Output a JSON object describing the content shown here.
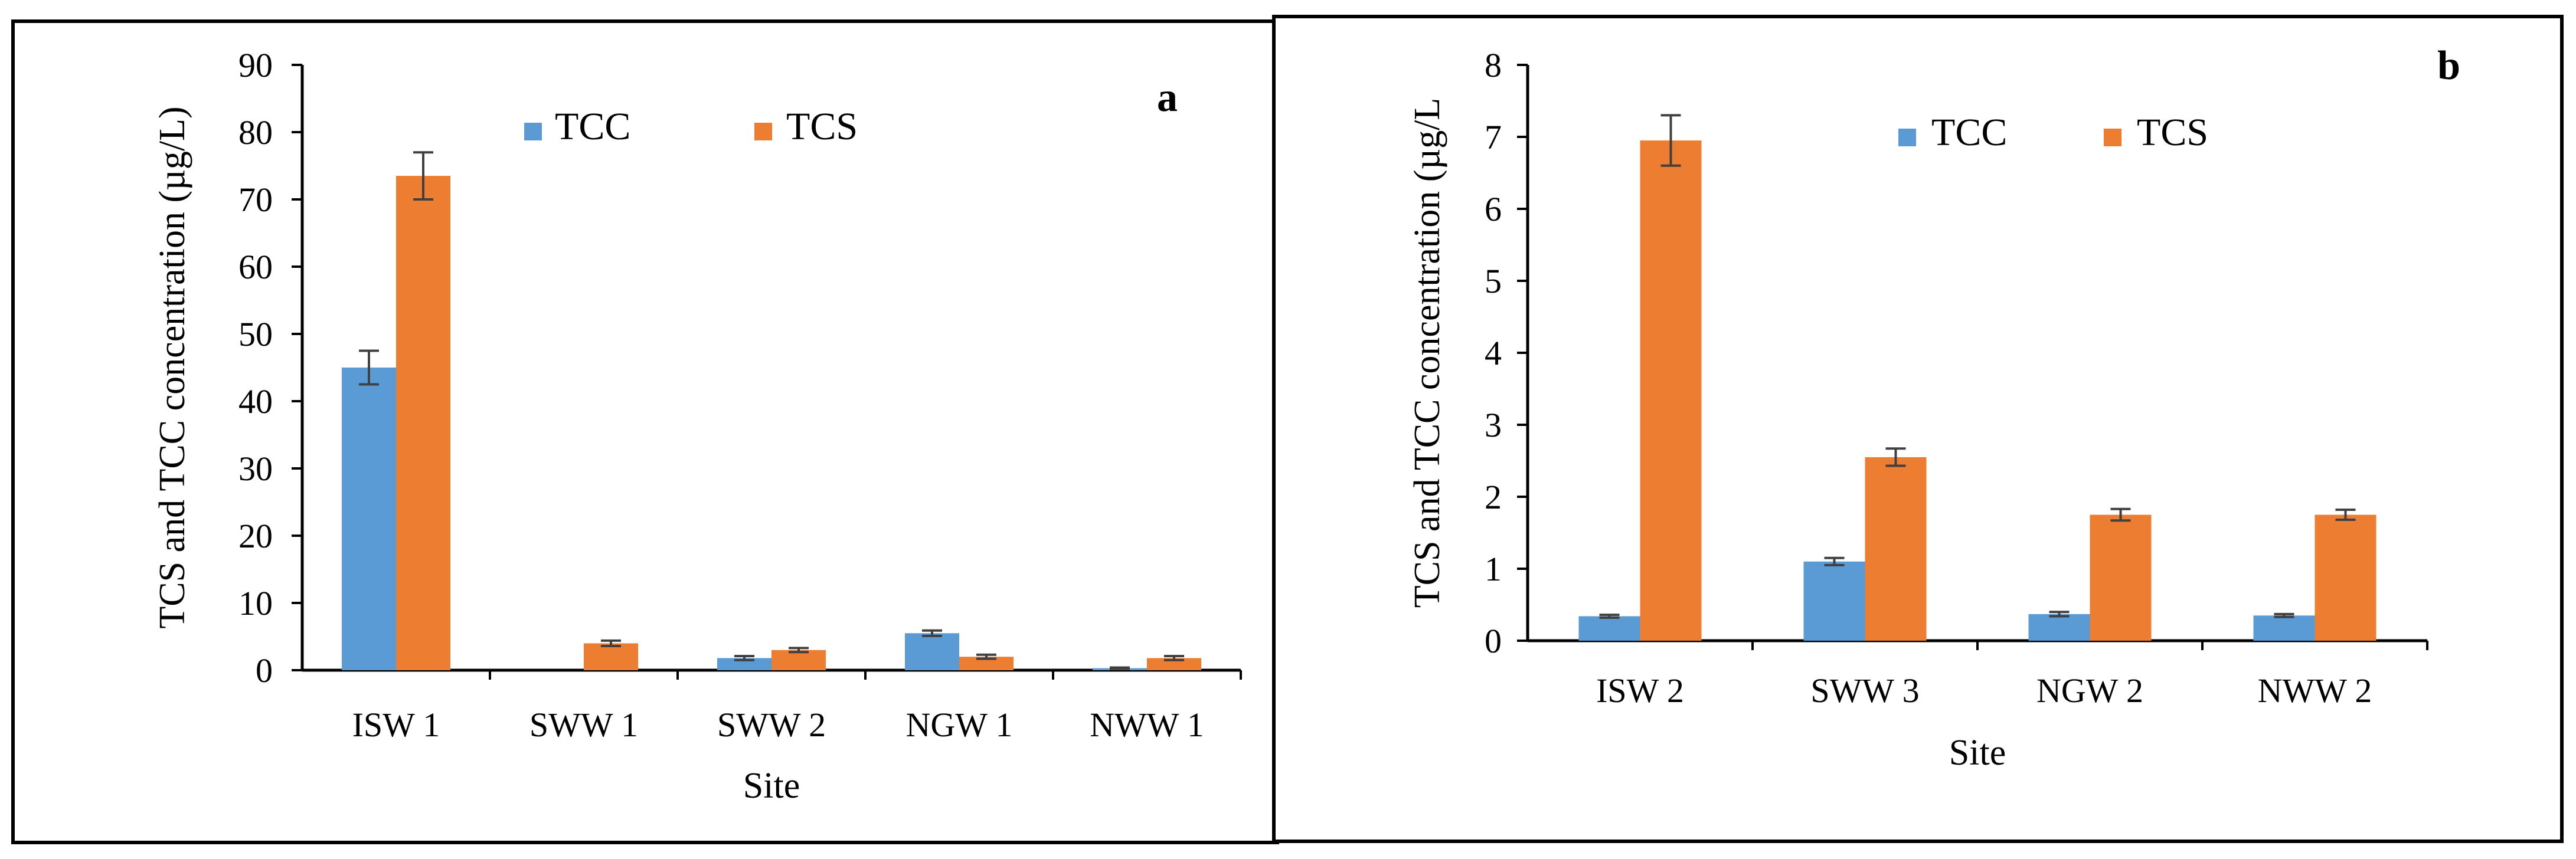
{
  "colors": {
    "tcc": "#5b9bd5",
    "tcs": "#ed7d31",
    "error_bar": "#404040",
    "axis": "#000000"
  },
  "chart_data": [
    {
      "type": "bar",
      "panel_label": "a",
      "categories": [
        "ISW 1",
        "SWW 1",
        "SWW 2",
        "NGW 1",
        "NWW 1"
      ],
      "series": [
        {
          "name": "TCC",
          "values": [
            45,
            0,
            1.8,
            5.5,
            0.3
          ],
          "errors": [
            2.5,
            0,
            0.3,
            0.4,
            0.1
          ]
        },
        {
          "name": "TCS",
          "values": [
            73.5,
            4,
            3,
            2,
            1.8
          ],
          "errors": [
            3.5,
            0.4,
            0.3,
            0.3,
            0.3
          ]
        }
      ],
      "xlabel": "Site",
      "ylabel": "TCS and TCC concentration (µg/L)",
      "ylim": [
        0,
        90
      ],
      "yticks": [
        0,
        10,
        20,
        30,
        40,
        50,
        60,
        70,
        80,
        90
      ],
      "grid": false,
      "legend": "top-center"
    },
    {
      "type": "bar",
      "panel_label": "b",
      "categories": [
        "ISW 2",
        "SWW 3",
        "NGW 2",
        "NWW 2"
      ],
      "series": [
        {
          "name": "TCC",
          "values": [
            0.34,
            1.1,
            0.37,
            0.35
          ],
          "errors": [
            0.02,
            0.05,
            0.03,
            0.02
          ]
        },
        {
          "name": "TCS",
          "values": [
            6.95,
            2.55,
            1.75,
            1.75
          ],
          "errors": [
            0.35,
            0.12,
            0.08,
            0.07
          ]
        }
      ],
      "xlabel": "Site",
      "ylabel": "TCS and TCC concentration (µg/L",
      "ylim": [
        0,
        8
      ],
      "yticks": [
        0,
        1,
        2,
        3,
        4,
        5,
        6,
        7,
        8
      ],
      "grid": false,
      "legend": "top-center"
    }
  ]
}
